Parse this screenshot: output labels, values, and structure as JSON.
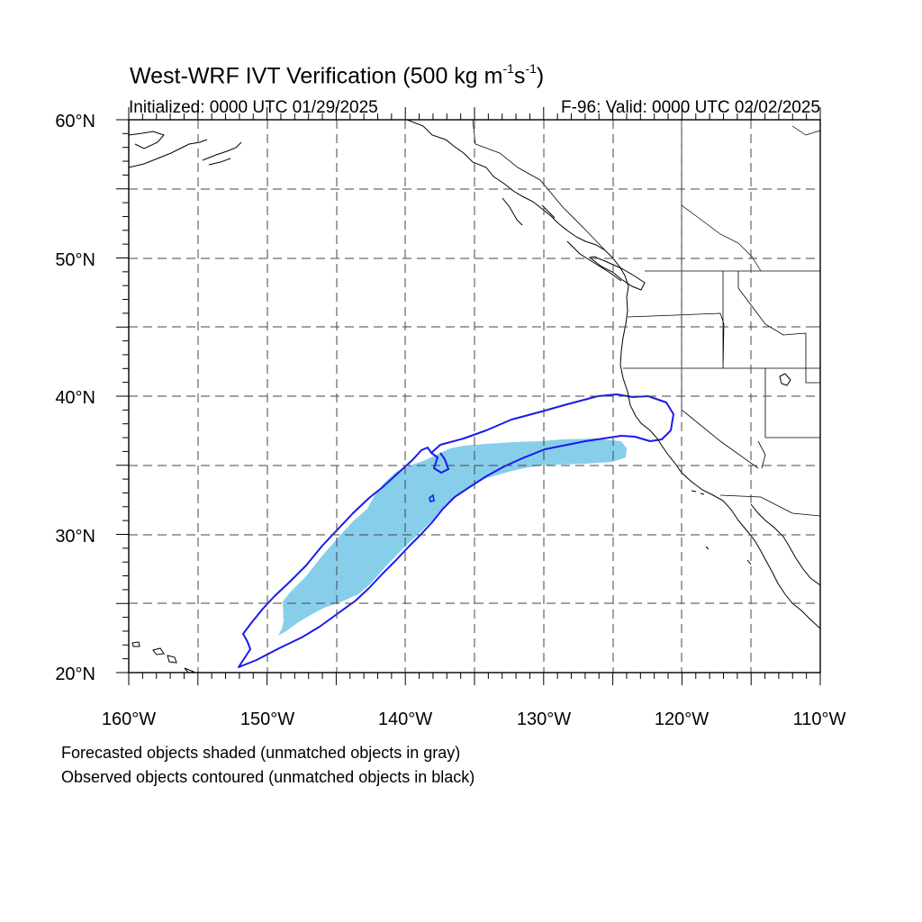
{
  "title": {
    "main": "West-WRF IVT Verification (500 kg m",
    "exp1": "-1",
    "mid": "s",
    "exp2": "-1",
    "tail": ")"
  },
  "subtitle": {
    "left": "Initialized: 0000 UTC 01/29/2025",
    "right": "F-96: Valid: 0000 UTC 02/02/2025"
  },
  "map": {
    "lon_range": [
      -160,
      -110
    ],
    "lat_range": [
      20,
      60
    ],
    "lon_ticks": [
      {
        "value": -160,
        "label": "160°W"
      },
      {
        "value": -150,
        "label": "150°W"
      },
      {
        "value": -140,
        "label": "140°W"
      },
      {
        "value": -130,
        "label": "130°W"
      },
      {
        "value": -120,
        "label": "120°W"
      },
      {
        "value": -110,
        "label": "110°W"
      }
    ],
    "lat_ticks": [
      {
        "value": 20,
        "label": "20°N"
      },
      {
        "value": 30,
        "label": "30°N"
      },
      {
        "value": 40,
        "label": "40°N"
      },
      {
        "value": 50,
        "label": "50°N"
      },
      {
        "value": 60,
        "label": "60°N"
      }
    ],
    "gridlines": "dashed every 5°",
    "forecast_fill_color": "#87ceeb",
    "observed_contour_color": "#0000ff",
    "coastline_color": "#000000"
  },
  "footnotes": [
    "Forecasted objects shaded (unmatched objects in gray)",
    "Observed objects contoured (unmatched objects in black)"
  ]
}
